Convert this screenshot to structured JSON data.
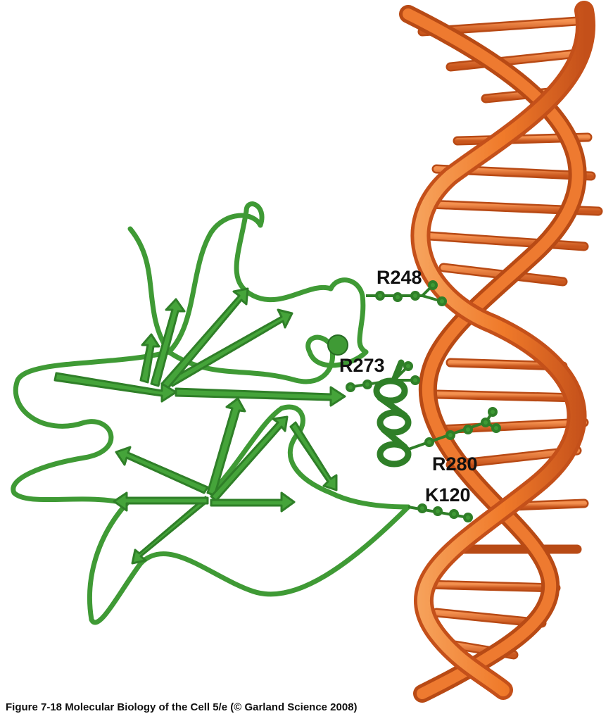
{
  "figure": {
    "caption": "Figure 7-18  Molecular Biology of the Cell 5/e (© Garland Science 2008)"
  },
  "residue_labels": {
    "r248": "R248",
    "r273": "R273",
    "r280": "R280",
    "k120": "K120"
  },
  "colors": {
    "protein": "#3f9a35",
    "protein_dark": "#256b22",
    "dna_strand": "#f07a2a",
    "dna_strand_dark": "#c4501a",
    "base_pair": "#e8692a",
    "label_text": "#111111"
  }
}
